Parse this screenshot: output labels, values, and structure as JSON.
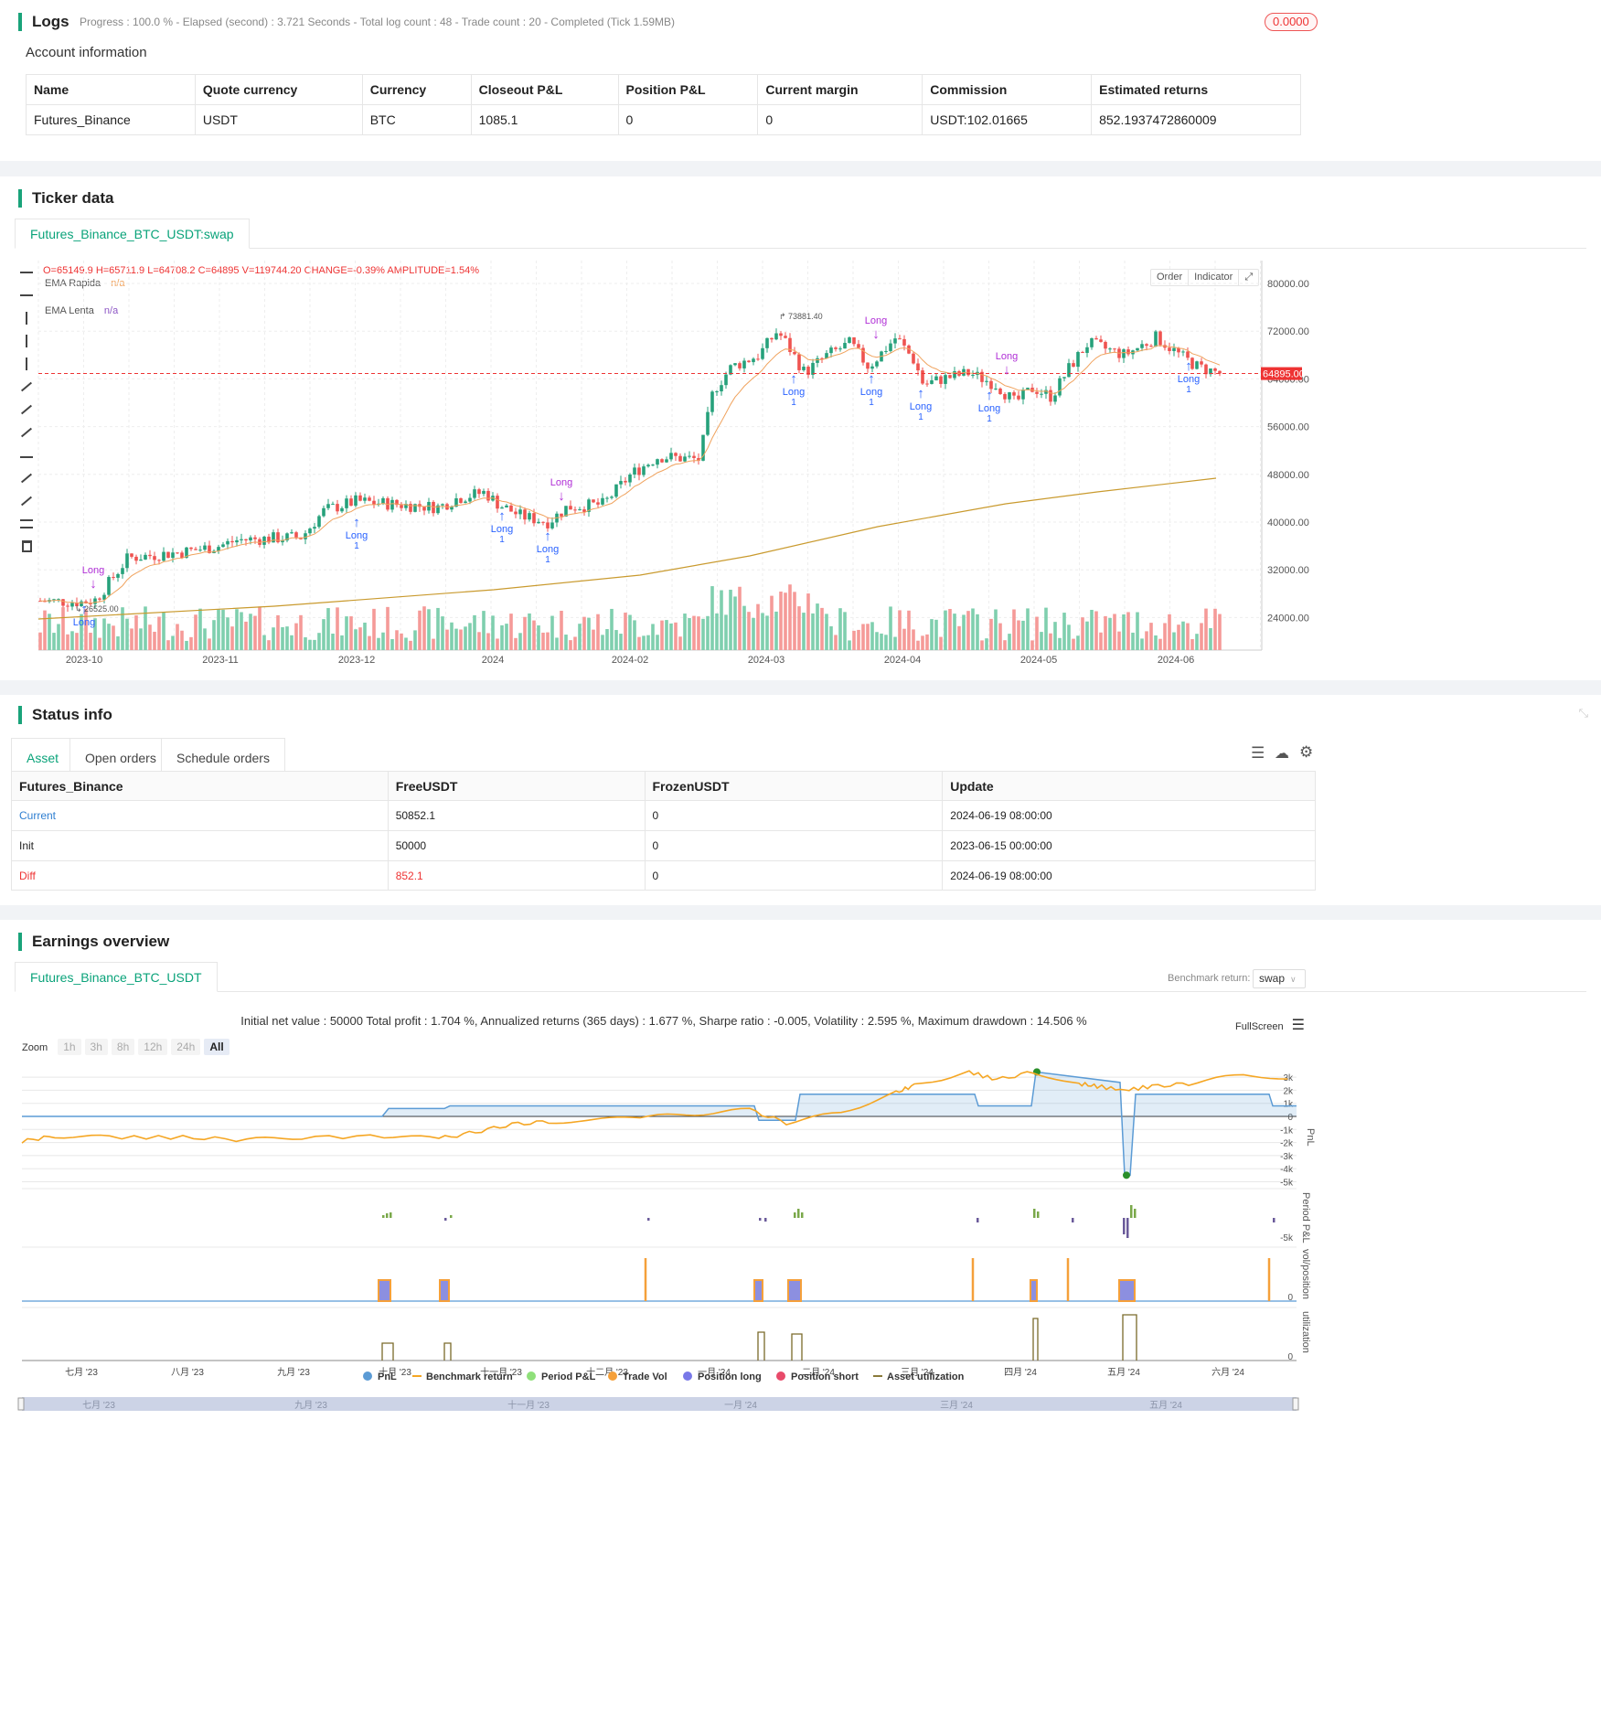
{
  "logs": {
    "title": "Logs",
    "summary": "Progress : 100.0 % - Elapsed (second) : 3.721 Seconds - Total log count : 48 - Trade count : 20 - Completed (Tick 1.59MB)",
    "badge": "0.0000"
  },
  "account": {
    "title": "Account information",
    "headers": [
      "Name",
      "Quote currency",
      "Currency",
      "Closeout P&L",
      "Position P&L",
      "Current margin",
      "Commission",
      "Estimated returns"
    ],
    "row": [
      "Futures_Binance",
      "USDT",
      "BTC",
      "1085.1",
      "0",
      "0",
      "USDT:102.01665",
      "852.1937472860009"
    ]
  },
  "ticker": {
    "title": "Ticker data",
    "tab": "Futures_Binance_BTC_USDT:swap",
    "ohlc": {
      "o": "O=65149.9",
      "h": "H=65711.9",
      "l": "L=64708.2",
      "c": "C=64895",
      "v": "V=119744.20",
      "change": "CHANGE=-0.39%",
      "amp": "AMPLITUDE=1.54%"
    },
    "ema_fast": {
      "label": "EMA Rapida",
      "value": "n/a"
    },
    "ema_slow": {
      "label": "EMA Lenta",
      "value": "n/a"
    },
    "buttons": {
      "order": "Order",
      "indicator": "Indicator"
    },
    "price_label": "64895.00",
    "high_label": "73881.40",
    "low_label": "26525.00",
    "y_ticks": [
      "80000.00",
      "72000.00",
      "64000.00",
      "56000.00",
      "48000.00",
      "40000.00",
      "32000.00",
      "24000.00"
    ],
    "x_ticks": [
      "2023-10",
      "2023-11",
      "2023-12",
      "2024",
      "2024-02",
      "2024-03",
      "2024-04",
      "2024-05",
      "2024-06"
    ],
    "signals": {
      "long": "Long",
      "one": "1"
    }
  },
  "status": {
    "title": "Status info",
    "tabs": [
      "Asset",
      "Open orders",
      "Schedule orders"
    ],
    "headers": [
      "Futures_Binance",
      "FreeUSDT",
      "FrozenUSDT",
      "Update"
    ],
    "rows": [
      [
        "Current",
        "50852.1",
        "0",
        "2024-06-19 08:00:00"
      ],
      [
        "Init",
        "50000",
        "0",
        "2023-06-15 00:00:00"
      ],
      [
        "Diff",
        "852.1",
        "0",
        "2024-06-19 08:00:00"
      ]
    ]
  },
  "earnings": {
    "title": "Earnings overview",
    "tab": "Futures_Binance_BTC_USDT",
    "benchmark_label": "Benchmark return:",
    "benchmark_value": "swap",
    "summary": "Initial net value : 50000 Total profit : 1.704 %, Annualized returns (365 days) : 1.677 %, Sharpe ratio : -0.005, Volatility : 2.595 %, Maximum drawdown : 14.506 %",
    "fullscreen": "FullScreen",
    "zoom_label": "Zoom",
    "zoom": [
      "1h",
      "3h",
      "8h",
      "12h",
      "24h",
      "All"
    ],
    "pnl_ticks": [
      "3k",
      "2k",
      "1k",
      "0",
      "-1k",
      "-2k",
      "-3k",
      "-4k",
      "-5k"
    ],
    "period_tick": "-5k",
    "vol_tick": "0",
    "util_tick": "0",
    "axis_titles": [
      "PnL",
      "Period P&L",
      "vol/position",
      "utilization"
    ],
    "months": [
      "七月 '23",
      "八月 '23",
      "九月 '23",
      "十月 '23",
      "十一月 '23",
      "十二月 '23",
      "一月 '24",
      "二月 '24",
      "三月 '24",
      "四月 '24",
      "五月 '24",
      "六月 '24"
    ],
    "nav_months": [
      "七月 '23",
      "九月 '23",
      "十一月 '23",
      "一月 '24",
      "三月 '24",
      "五月 '24"
    ],
    "legend": [
      "PnL",
      "Benchmark return",
      "Period P&L",
      "Trade Vol",
      "Position long",
      "Position short",
      "Asset utilization"
    ]
  },
  "colors": {
    "accent": "#0aa37a",
    "up": "#26a17b",
    "down": "#ef5350",
    "ema_fast": "#f0a35e",
    "ema_slow": "#c99a2e",
    "pnl": "#5b9bd5",
    "bench": "#f5a623",
    "long": "#2962ff",
    "signal": "#b02fd6"
  }
}
